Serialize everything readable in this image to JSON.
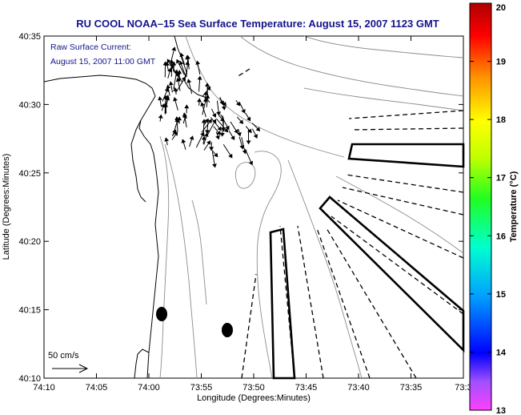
{
  "title": "RU COOL  NOAA–15  Sea Surface Temperature:  August 15, 2007 1123 GMT",
  "annotation": {
    "line1": "Raw Surface Current:",
    "line2": "August 15, 2007 11:00 GMT"
  },
  "scale_label": "50 cm/s",
  "axes": {
    "xlabel": "Longitude (Degrees:Minutes)",
    "ylabel": "Latitude (Degrees:Minutes)",
    "x_ticks": [
      "74:10",
      "74:05",
      "74:00",
      "73:55",
      "73:50",
      "73:45",
      "73:40",
      "73:35",
      "73:3"
    ],
    "y_ticks": [
      "40:35",
      "40:30",
      "40:25",
      "40:20",
      "40:15",
      "40:10"
    ],
    "x_range_minutes": [
      -70,
      -30
    ],
    "y_range_minutes": [
      10,
      35
    ]
  },
  "colorbar": {
    "label": "Temperature (°C)",
    "min": 13,
    "max": 20,
    "ticks": [
      "13",
      "14",
      "15",
      "16",
      "17",
      "18",
      "19",
      "20"
    ]
  },
  "colors": {
    "title": "#14148c",
    "annotation": "#14148c",
    "coast": "#000000",
    "bathymetry": "#8c8c8c"
  }
}
